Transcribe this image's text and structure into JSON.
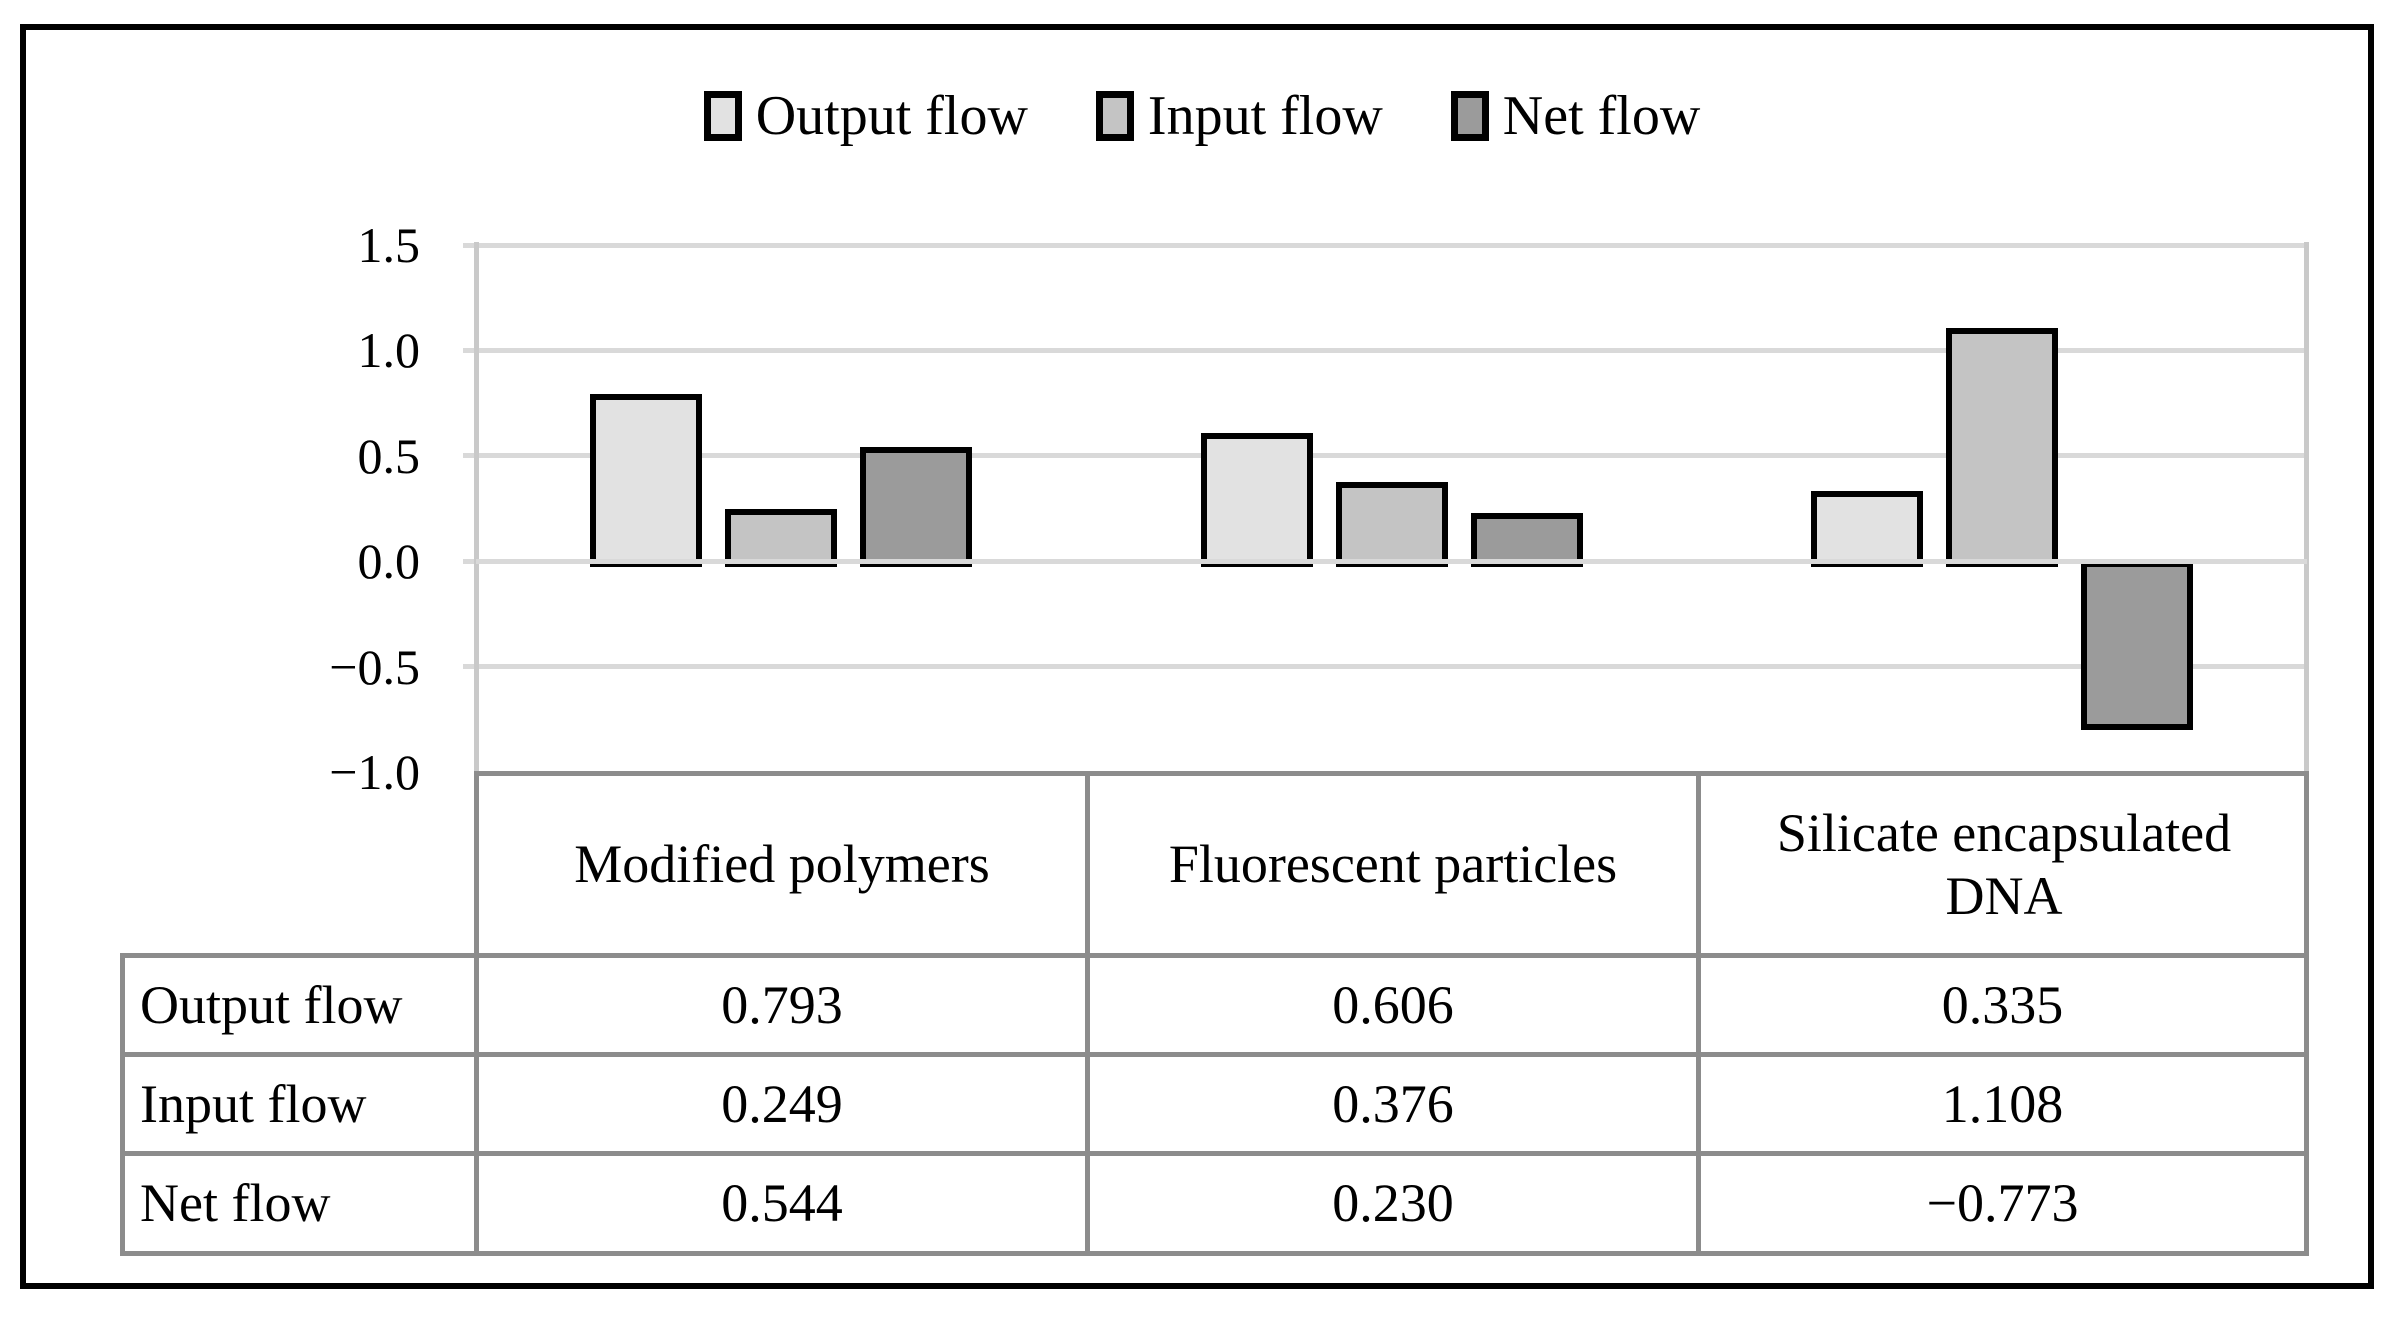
{
  "chart_data": {
    "type": "bar",
    "title": "",
    "xlabel": "",
    "ylabel": "",
    "categories": [
      "Modified polymers",
      "Fluorescent particles",
      "Silicate encapsulated DNA"
    ],
    "series": [
      {
        "name": "Output flow",
        "color": "#e2e2e2",
        "values": [
          0.793,
          0.606,
          0.335
        ]
      },
      {
        "name": "Input flow",
        "color": "#c4c4c4",
        "values": [
          0.249,
          0.376,
          1.108
        ]
      },
      {
        "name": "Net flow",
        "color": "#9b9b9b",
        "values": [
          0.544,
          0.23,
          -0.773
        ]
      }
    ],
    "ylim": [
      -1.0,
      1.5
    ],
    "ytick_step": 0.5,
    "ytick_labels": [
      "1.5",
      "1.0",
      "0.5",
      "0.0",
      "−0.5",
      "−1.0"
    ],
    "grid": true,
    "legend_position": "top",
    "bar_border_color": "#000000",
    "gridline_color": "#d9d9d9"
  },
  "table": {
    "col_headers": [
      "Modified polymers",
      "Fluorescent particles",
      "Silicate encapsulated DNA"
    ],
    "rows": [
      {
        "label": "Output flow",
        "values": [
          "0.793",
          "0.606",
          "0.335"
        ]
      },
      {
        "label": "Input flow",
        "values": [
          "0.249",
          "0.376",
          "1.108"
        ]
      },
      {
        "label": "Net flow",
        "values": [
          "0.544",
          "0.230",
          "−0.773"
        ]
      }
    ],
    "border_color": "#8c8c8c"
  }
}
